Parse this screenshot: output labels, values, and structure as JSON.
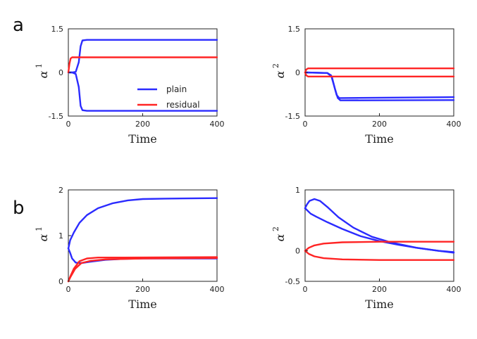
{
  "panel_labels": [
    "a",
    "b"
  ],
  "colors": {
    "plain": "#2b2bff",
    "residual": "#ff2424"
  },
  "legend": {
    "entries": [
      {
        "name": "plain",
        "color": "#2b2bff"
      },
      {
        "name": "residual",
        "color": "#ff2424"
      }
    ],
    "placement": "inside lower right of top-left panel"
  },
  "chart_data": [
    {
      "type": "line",
      "panel": "a",
      "xlabel": "Time",
      "ylabel": "α",
      "ylabel_sup": "1",
      "xlim": [
        0,
        400
      ],
      "ylim": [
        -1.5,
        1.5
      ],
      "xticks": [
        0,
        200,
        400
      ],
      "yticks": [
        1.5,
        0,
        -1.5
      ],
      "ytick_labels": [
        "1.5",
        "0",
        "-1.5"
      ],
      "grid": false,
      "show_legend": true,
      "series": [
        {
          "name": "plain",
          "color": "#2b2bff",
          "points": [
            [
              0,
              0
            ],
            [
              10,
              0
            ],
            [
              20,
              0.02
            ],
            [
              28,
              0.35
            ],
            [
              33,
              0.9
            ],
            [
              38,
              1.1
            ],
            [
              50,
              1.12
            ],
            [
              400,
              1.12
            ]
          ]
        },
        {
          "name": "plain",
          "color": "#2b2bff",
          "points": [
            [
              0,
              0
            ],
            [
              10,
              0
            ],
            [
              20,
              -0.05
            ],
            [
              28,
              -0.5
            ],
            [
              33,
              -1.15
            ],
            [
              38,
              -1.3
            ],
            [
              50,
              -1.32
            ],
            [
              400,
              -1.32
            ]
          ]
        },
        {
          "name": "residual",
          "color": "#ff2424",
          "points": [
            [
              0,
              0
            ],
            [
              3,
              0.3
            ],
            [
              6,
              0.48
            ],
            [
              10,
              0.52
            ],
            [
              400,
              0.52
            ]
          ]
        }
      ]
    },
    {
      "type": "line",
      "panel": "a",
      "xlabel": "Time",
      "ylabel": "α",
      "ylabel_sup": "2",
      "xlim": [
        0,
        400
      ],
      "ylim": [
        -1.5,
        1.5
      ],
      "xticks": [
        0,
        200,
        400
      ],
      "yticks": [
        1.5,
        0,
        -1.5
      ],
      "ytick_labels": [
        "1.5",
        "0",
        "-1.5"
      ],
      "grid": false,
      "show_legend": false,
      "series": [
        {
          "name": "plain",
          "color": "#2b2bff",
          "points": [
            [
              0,
              0
            ],
            [
              60,
              -0.02
            ],
            [
              70,
              -0.1
            ],
            [
              78,
              -0.45
            ],
            [
              85,
              -0.78
            ],
            [
              92,
              -0.88
            ],
            [
              400,
              -0.85
            ]
          ]
        },
        {
          "name": "plain",
          "color": "#2b2bff",
          "points": [
            [
              0,
              0
            ],
            [
              60,
              -0.02
            ],
            [
              72,
              -0.15
            ],
            [
              80,
              -0.55
            ],
            [
              88,
              -0.88
            ],
            [
              95,
              -0.96
            ],
            [
              400,
              -0.95
            ]
          ]
        },
        {
          "name": "residual",
          "color": "#ff2424",
          "points": [
            [
              0,
              0
            ],
            [
              3,
              0.1
            ],
            [
              8,
              0.14
            ],
            [
              400,
              0.14
            ]
          ]
        },
        {
          "name": "residual",
          "color": "#ff2424",
          "points": [
            [
              0,
              0
            ],
            [
              3,
              -0.1
            ],
            [
              8,
              -0.14
            ],
            [
              400,
              -0.14
            ]
          ]
        }
      ]
    },
    {
      "type": "line",
      "panel": "b",
      "xlabel": "Time",
      "ylabel": "α",
      "ylabel_sup": "1",
      "xlim": [
        0,
        400
      ],
      "ylim": [
        0,
        2
      ],
      "xticks": [
        0,
        200,
        400
      ],
      "yticks": [
        2,
        1,
        0
      ],
      "ytick_labels": [
        "2",
        "1",
        "0"
      ],
      "grid": false,
      "show_legend": false,
      "series": [
        {
          "name": "plain",
          "color": "#2b2bff",
          "points": [
            [
              0,
              0.72
            ],
            [
              5,
              0.9
            ],
            [
              15,
              1.07
            ],
            [
              30,
              1.28
            ],
            [
              50,
              1.45
            ],
            [
              80,
              1.6
            ],
            [
              120,
              1.71
            ],
            [
              160,
              1.77
            ],
            [
              200,
              1.8
            ],
            [
              260,
              1.81
            ],
            [
              400,
              1.82
            ]
          ]
        },
        {
          "name": "plain",
          "color": "#2b2bff",
          "points": [
            [
              0,
              0.72
            ],
            [
              5,
              0.62
            ],
            [
              10,
              0.5
            ],
            [
              20,
              0.41
            ],
            [
              35,
              0.4
            ],
            [
              60,
              0.43
            ],
            [
              100,
              0.47
            ],
            [
              150,
              0.49
            ],
            [
              200,
              0.5
            ],
            [
              400,
              0.5
            ]
          ]
        },
        {
          "name": "residual",
          "color": "#ff2424",
          "points": [
            [
              0,
              0
            ],
            [
              5,
              0.1
            ],
            [
              15,
              0.28
            ],
            [
              30,
              0.44
            ],
            [
              50,
              0.5
            ],
            [
              80,
              0.52
            ],
            [
              150,
              0.52
            ],
            [
              400,
              0.53
            ]
          ]
        },
        {
          "name": "residual",
          "color": "#ff2424",
          "points": [
            [
              0,
              0
            ],
            [
              6,
              0.1
            ],
            [
              18,
              0.27
            ],
            [
              35,
              0.4
            ],
            [
              60,
              0.45
            ],
            [
              100,
              0.48
            ],
            [
              200,
              0.5
            ],
            [
              400,
              0.51
            ]
          ]
        }
      ]
    },
    {
      "type": "line",
      "panel": "b",
      "xlabel": "Time",
      "ylabel": "α",
      "ylabel_sup": "2",
      "xlim": [
        0,
        400
      ],
      "ylim": [
        -0.5,
        1
      ],
      "xticks": [
        0,
        200,
        400
      ],
      "yticks": [
        1,
        0,
        -0.5
      ],
      "ytick_labels": [
        "1",
        "0",
        "-0.5"
      ],
      "grid": false,
      "show_legend": false,
      "series": [
        {
          "name": "plain",
          "color": "#2b2bff",
          "points": [
            [
              0,
              0.7
            ],
            [
              5,
              0.76
            ],
            [
              12,
              0.82
            ],
            [
              25,
              0.85
            ],
            [
              40,
              0.82
            ],
            [
              60,
              0.72
            ],
            [
              90,
              0.55
            ],
            [
              130,
              0.38
            ],
            [
              180,
              0.23
            ],
            [
              230,
              0.14
            ],
            [
              300,
              0.05
            ],
            [
              360,
              0.0
            ],
            [
              400,
              -0.02
            ]
          ]
        },
        {
          "name": "plain",
          "color": "#2b2bff",
          "points": [
            [
              0,
              0.7
            ],
            [
              5,
              0.67
            ],
            [
              15,
              0.61
            ],
            [
              30,
              0.56
            ],
            [
              60,
              0.47
            ],
            [
              100,
              0.36
            ],
            [
              150,
              0.24
            ],
            [
              200,
              0.16
            ],
            [
              250,
              0.1
            ],
            [
              300,
              0.05
            ],
            [
              360,
              0.0
            ],
            [
              400,
              -0.03
            ]
          ]
        },
        {
          "name": "residual",
          "color": "#ff2424",
          "points": [
            [
              0,
              0
            ],
            [
              10,
              0.05
            ],
            [
              25,
              0.09
            ],
            [
              50,
              0.12
            ],
            [
              100,
              0.14
            ],
            [
              200,
              0.15
            ],
            [
              400,
              0.15
            ]
          ]
        },
        {
          "name": "residual",
          "color": "#ff2424",
          "points": [
            [
              0,
              0
            ],
            [
              10,
              -0.05
            ],
            [
              25,
              -0.09
            ],
            [
              50,
              -0.12
            ],
            [
              100,
              -0.14
            ],
            [
              200,
              -0.15
            ],
            [
              400,
              -0.15
            ]
          ]
        }
      ]
    }
  ]
}
